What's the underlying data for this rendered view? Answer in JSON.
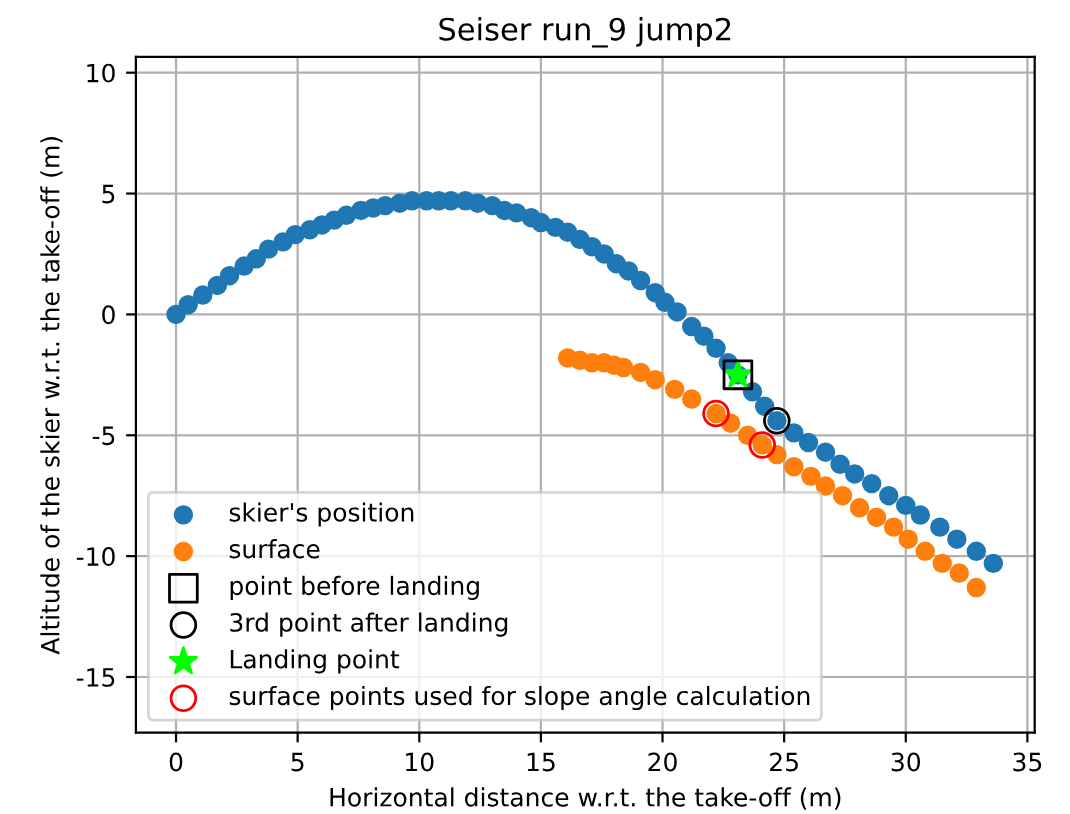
{
  "chart_data": {
    "type": "scatter",
    "title": "Seiser run_9 jump2",
    "xlabel": "Horizontal distance w.r.t. the take-off (m)",
    "ylabel": "Altitude of the skier w.r.t. the take-off (m)",
    "xlim": [
      -1.65,
      35.3
    ],
    "ylim": [
      -17.3,
      10.65
    ],
    "xticks": [
      0,
      5,
      10,
      15,
      20,
      25,
      30,
      35
    ],
    "yticks": [
      -15,
      -10,
      -5,
      0,
      5,
      10
    ],
    "grid": true,
    "legend": "bottom left",
    "series": [
      {
        "name": "skier's position",
        "color": "#1f77b4",
        "marker": "circle",
        "x": [
          0,
          0.5,
          1.1,
          1.7,
          2.2,
          2.8,
          3.3,
          3.8,
          4.4,
          4.9,
          5.5,
          6.0,
          6.5,
          7.0,
          7.6,
          8.1,
          8.6,
          9.2,
          9.7,
          10.3,
          10.8,
          11.3,
          11.9,
          12.4,
          13.0,
          13.5,
          14.0,
          14.6,
          15.0,
          15.6,
          16.1,
          16.6,
          17.1,
          17.6,
          18.1,
          18.6,
          19.1,
          19.7,
          20.1,
          20.6,
          21.2,
          21.7,
          22.2,
          22.7,
          23.1,
          23.7,
          24.2,
          24.7,
          25.4,
          26.0,
          26.7,
          27.3,
          27.9,
          28.6,
          29.3,
          30.0,
          30.6,
          31.4,
          32.1,
          32.9,
          33.6
        ],
        "values": [
          0,
          0.4,
          0.8,
          1.2,
          1.6,
          2.0,
          2.3,
          2.7,
          3.0,
          3.3,
          3.5,
          3.7,
          3.9,
          4.1,
          4.3,
          4.4,
          4.5,
          4.6,
          4.7,
          4.7,
          4.7,
          4.7,
          4.7,
          4.6,
          4.5,
          4.3,
          4.2,
          4.0,
          3.8,
          3.6,
          3.4,
          3.1,
          2.8,
          2.5,
          2.1,
          1.8,
          1.4,
          0.9,
          0.5,
          0.1,
          -0.5,
          -0.9,
          -1.4,
          -2.0,
          -2.5,
          -3.2,
          -3.8,
          -4.4,
          -4.9,
          -5.3,
          -5.7,
          -6.2,
          -6.6,
          -7.0,
          -7.5,
          -7.9,
          -8.3,
          -8.8,
          -9.3,
          -9.8,
          -10.3
        ]
      },
      {
        "name": "surface",
        "color": "#ff7f0e",
        "marker": "circle",
        "x": [
          16.1,
          16.6,
          17.1,
          17.6,
          18.0,
          18.4,
          19.1,
          19.7,
          20.5,
          21.2,
          22.2,
          22.8,
          23.5,
          24.1,
          24.7,
          25.4,
          26.1,
          26.7,
          27.4,
          28.1,
          28.8,
          29.5,
          30.1,
          30.8,
          31.5,
          32.2,
          32.9
        ],
        "values": [
          -1.8,
          -1.9,
          -2.0,
          -2.0,
          -2.1,
          -2.2,
          -2.4,
          -2.7,
          -3.1,
          -3.5,
          -4.1,
          -4.5,
          -5.0,
          -5.4,
          -5.8,
          -6.3,
          -6.7,
          -7.1,
          -7.5,
          -8.0,
          -8.4,
          -8.8,
          -9.3,
          -9.8,
          -10.3,
          -10.7,
          -11.3
        ]
      },
      {
        "name": "point before landing",
        "color": "#000000",
        "marker": "square",
        "x": [
          23.1
        ],
        "values": [
          -2.5
        ]
      },
      {
        "name": "3rd point after landing",
        "color": "#000000",
        "marker": "circle",
        "x": [
          24.7
        ],
        "values": [
          -4.4
        ]
      },
      {
        "name": "Landing point",
        "color": "#00ff00",
        "marker": "star",
        "x": [
          23.1
        ],
        "values": [
          -2.5
        ]
      },
      {
        "name": "surface points used for slope angle calculation",
        "color": "#ff0000",
        "marker": "circle",
        "x": [
          22.2,
          24.1
        ],
        "values": [
          -4.1,
          -5.4
        ]
      }
    ]
  }
}
